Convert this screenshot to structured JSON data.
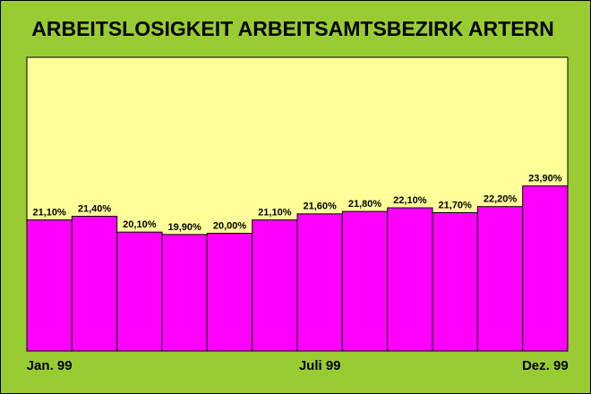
{
  "chart_data": {
    "type": "bar",
    "title": "ARBEITSLOSIGKEIT ARBEITSAMTSBEZIRK ARTERN",
    "categories": [
      "Jan. 99",
      null,
      null,
      null,
      null,
      null,
      "Juli 99",
      null,
      null,
      null,
      null,
      "Dez. 99"
    ],
    "values": [
      21.1,
      21.4,
      20.1,
      19.9,
      20.0,
      21.1,
      21.6,
      21.8,
      22.1,
      21.7,
      22.2,
      23.9
    ],
    "value_labels": [
      "21,10%",
      "21,40%",
      "20,10%",
      "19,90%",
      "20,00%",
      "21,10%",
      "21,60%",
      "21,80%",
      "22,10%",
      "21,70%",
      "22,20%",
      "23,90%"
    ],
    "color": "#ff00ff",
    "ylim": [
      10.3,
      34.5
    ]
  }
}
